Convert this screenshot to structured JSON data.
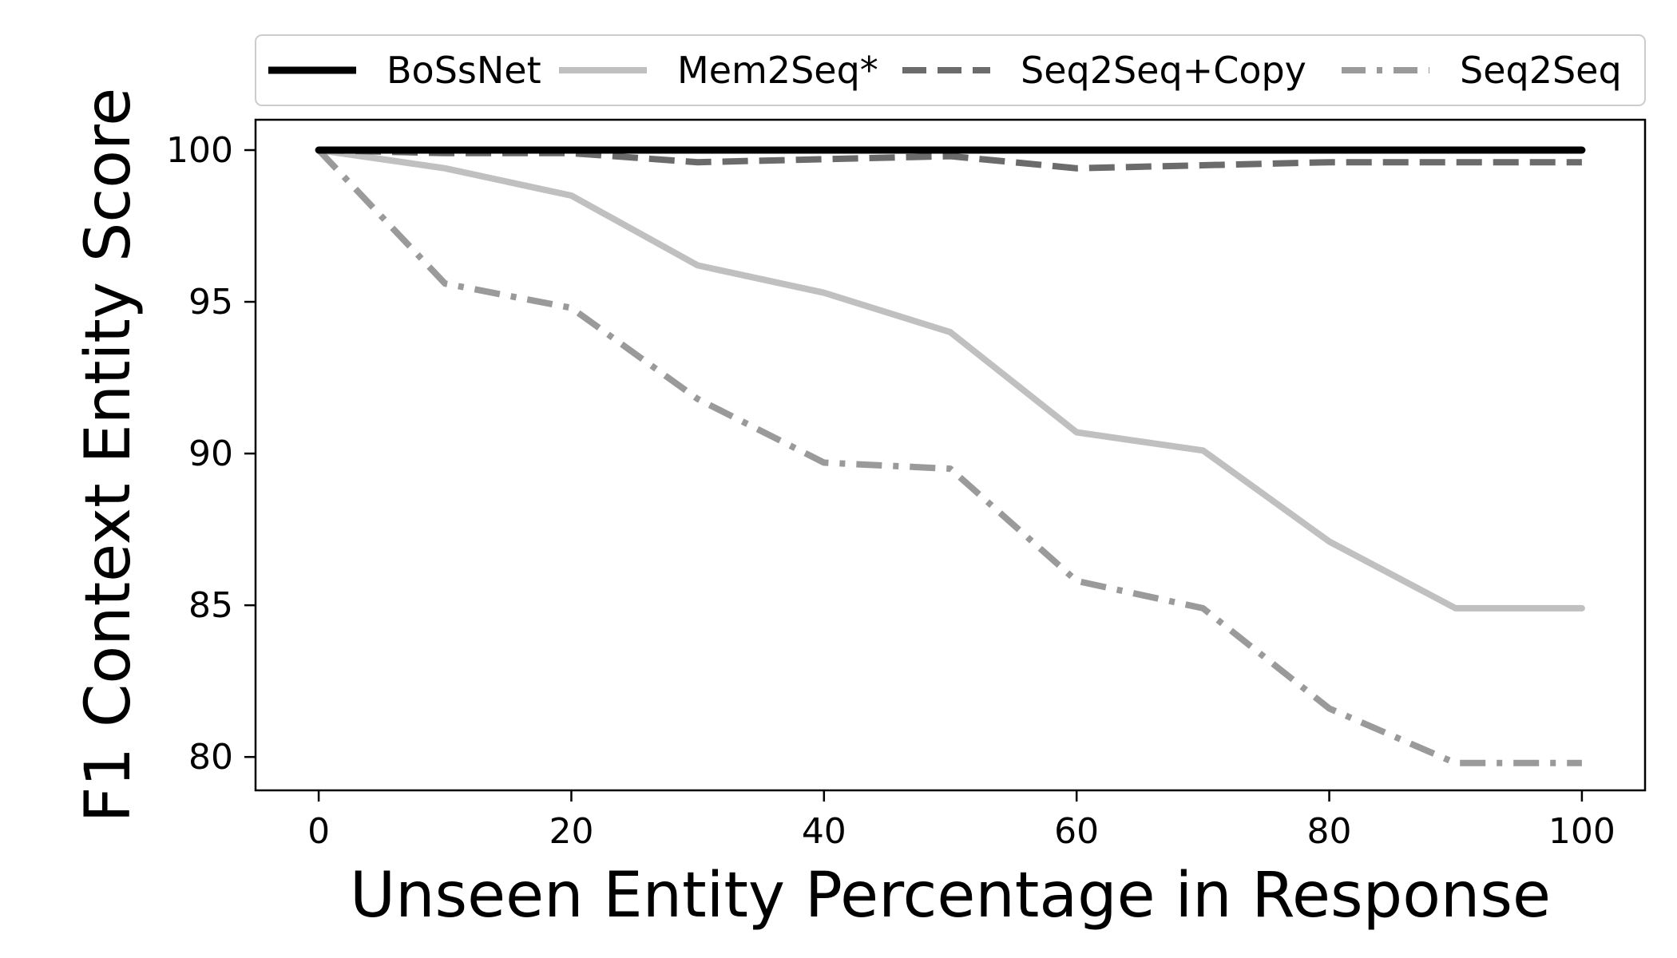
{
  "chart_data": {
    "type": "line",
    "xlabel": "Unseen Entity Percentage in Response",
    "ylabel": "F1 Context Entity Score",
    "x": [
      0,
      10,
      20,
      30,
      40,
      50,
      60,
      70,
      80,
      90,
      100
    ],
    "xticks": [
      "0",
      "20",
      "40",
      "60",
      "80",
      "100"
    ],
    "yticks": [
      "80",
      "85",
      "90",
      "95",
      "100"
    ],
    "xlim": [
      -5,
      105
    ],
    "ylim": [
      78.9,
      101.0
    ],
    "grid": false,
    "legend_position": "above plot, single row",
    "series": [
      {
        "name": "BoSsNet",
        "style": "solid",
        "color": "#000000",
        "values": [
          100,
          100,
          100,
          100,
          100,
          100,
          100,
          100,
          100,
          100,
          100
        ]
      },
      {
        "name": "Mem2Seq*",
        "style": "solid",
        "color": "#c0c0c0",
        "values": [
          100,
          99.4,
          98.5,
          96.2,
          95.3,
          94.0,
          90.7,
          90.1,
          87.1,
          84.9,
          84.9
        ]
      },
      {
        "name": "Seq2Seq+Copy",
        "style": "dashed",
        "color": "#6b6b6b",
        "values": [
          100,
          99.9,
          99.9,
          99.6,
          99.7,
          99.8,
          99.4,
          99.5,
          99.6,
          99.6,
          99.6
        ]
      },
      {
        "name": "Seq2Seq",
        "style": "dashdot",
        "color": "#9a9a9a",
        "values": [
          100,
          95.6,
          94.8,
          91.8,
          89.7,
          89.5,
          85.8,
          84.9,
          81.6,
          79.8,
          79.8
        ]
      }
    ]
  }
}
